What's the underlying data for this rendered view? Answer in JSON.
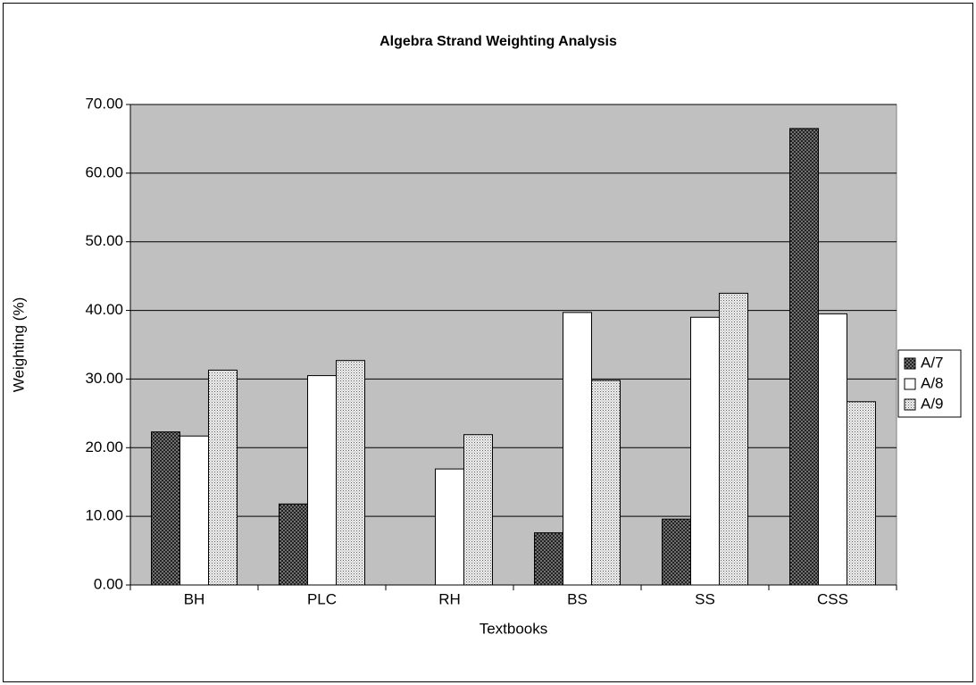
{
  "chart_data": {
    "type": "bar",
    "title": "Algebra Strand Weighting Analysis",
    "x_label": "Textbooks",
    "y_label": "Weighting (%)",
    "categories": [
      "BH",
      "PLC",
      "RH",
      "BS",
      "SS",
      "CSS"
    ],
    "series": [
      {
        "name": "A/7",
        "color": "#404040",
        "pattern": "crosshatch",
        "values": [
          22.3,
          11.8,
          0,
          7.6,
          9.6,
          66.5
        ]
      },
      {
        "name": "A/8",
        "color": "#ffffff",
        "pattern": "none",
        "values": [
          21.7,
          30.5,
          16.9,
          39.7,
          39.0,
          39.5
        ]
      },
      {
        "name": "A/9",
        "color": "#b0b0b0",
        "pattern": "dots",
        "values": [
          31.3,
          32.7,
          21.9,
          29.8,
          42.5,
          26.7
        ]
      }
    ],
    "ylim": [
      0,
      70
    ],
    "yticks": [
      {
        "value": 0,
        "label": "0.00"
      },
      {
        "value": 10,
        "label": "10.00"
      },
      {
        "value": 20,
        "label": "20.00"
      },
      {
        "value": 30,
        "label": "30.00"
      },
      {
        "value": 40,
        "label": "40.00"
      },
      {
        "value": 50,
        "label": "50.00"
      },
      {
        "value": 60,
        "label": "60.00"
      },
      {
        "value": 70,
        "label": "70.00"
      }
    ],
    "grid": true,
    "plot_background": "#c0c0c0",
    "legend": "right"
  }
}
